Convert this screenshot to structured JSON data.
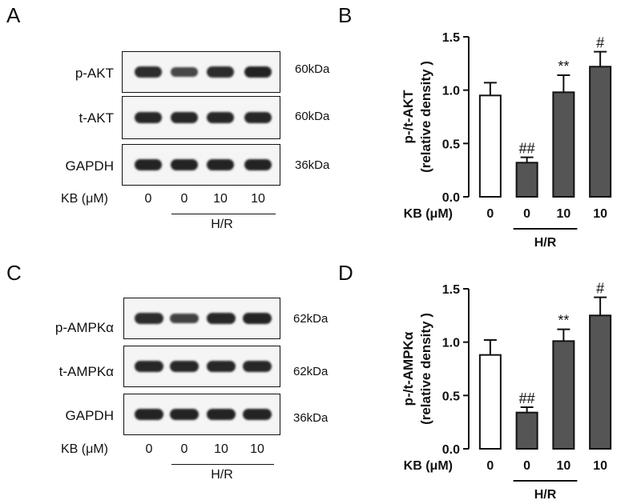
{
  "panels": {
    "A": "A",
    "B": "B",
    "C": "C",
    "D": "D"
  },
  "blots": [
    {
      "rows": [
        {
          "label": "p-AKT",
          "kda": "60kDa",
          "intensity": [
            0.85,
            0.55,
            0.85,
            0.95
          ]
        },
        {
          "label": "t-AKT",
          "kda": "60kDa",
          "intensity": [
            0.9,
            0.9,
            0.9,
            0.9
          ]
        },
        {
          "label": "GAPDH",
          "kda": "36kDa",
          "intensity": [
            0.95,
            0.95,
            0.95,
            0.95
          ]
        }
      ],
      "condition_label": "KB (μM)",
      "lanes": [
        "0",
        "0",
        "10",
        "10"
      ],
      "group_label": "H/R"
    },
    {
      "rows": [
        {
          "label": "p-AMPKα",
          "kda": "62kDa",
          "intensity": [
            0.85,
            0.6,
            0.9,
            0.95
          ]
        },
        {
          "label": "t-AMPKα",
          "kda": "62kDa",
          "intensity": [
            0.9,
            0.9,
            0.9,
            0.9
          ]
        },
        {
          "label": "GAPDH",
          "kda": "36kDa",
          "intensity": [
            0.95,
            0.95,
            0.95,
            0.95
          ]
        }
      ],
      "condition_label": "KB (μM)",
      "lanes": [
        "0",
        "0",
        "10",
        "10"
      ],
      "group_label": "H/R"
    }
  ],
  "chart_data": [
    {
      "type": "bar",
      "categories": [
        "0",
        "0",
        "10",
        "10"
      ],
      "values": [
        0.95,
        0.32,
        0.98,
        1.22
      ],
      "errors": [
        0.12,
        0.05,
        0.16,
        0.14
      ],
      "fills": [
        "#ffffff",
        "#555555",
        "#555555",
        "#555555"
      ],
      "annotations": [
        "",
        "##",
        "**",
        "#"
      ],
      "ylabel_line1": "p-/t-AKT",
      "ylabel_line2": "(relative density )",
      "ylim": [
        0,
        1.5
      ],
      "yticks": [
        "0.0",
        "0.5",
        "1.0",
        "1.5"
      ],
      "xlabel": "KB (μM)",
      "group_label": "H/R"
    },
    {
      "type": "bar",
      "categories": [
        "0",
        "0",
        "10",
        "10"
      ],
      "values": [
        0.88,
        0.34,
        1.01,
        1.25
      ],
      "errors": [
        0.14,
        0.05,
        0.11,
        0.17
      ],
      "fills": [
        "#ffffff",
        "#555555",
        "#555555",
        "#555555"
      ],
      "annotations": [
        "",
        "##",
        "**",
        "#"
      ],
      "ylabel_line1": "p-/t-AMPKα",
      "ylabel_line2": "(relative density )",
      "ylim": [
        0,
        1.5
      ],
      "yticks": [
        "0.0",
        "0.5",
        "1.0",
        "1.5"
      ],
      "xlabel": "KB (μM)",
      "group_label": "H/R"
    }
  ]
}
